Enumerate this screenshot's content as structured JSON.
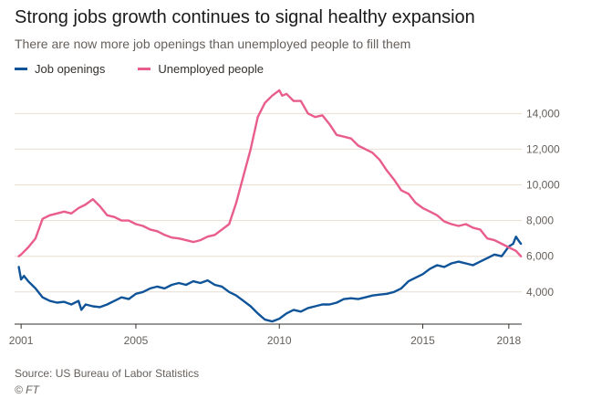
{
  "header": {
    "title": "Strong jobs growth continues to signal healthy expansion",
    "subtitle": "There are now more job openings than unemployed people to fill them"
  },
  "footer": {
    "source": "Source: US Bureau of Labor Statistics",
    "credit": "© FT"
  },
  "colors": {
    "job_openings": "#0f5499",
    "unemployed": "#e95d8c",
    "grid": "#e9decf",
    "axis": "#33302e"
  },
  "chart_data": {
    "type": "line",
    "title": "Strong jobs growth continues to signal healthy expansion",
    "subtitle": "There are now more job openings than unemployed people to fill them",
    "xlabel": "",
    "ylabel": "",
    "xlim": [
      2000.9,
      2018.45
    ],
    "ylim": [
      2200,
      15500
    ],
    "y_ticks": [
      4000,
      6000,
      8000,
      10000,
      12000,
      14000
    ],
    "y_tick_labels": [
      "4,000",
      "6,000",
      "8,000",
      "10,000",
      "12,000",
      "14,000"
    ],
    "x_ticks": [
      2001,
      2005,
      2010,
      2015,
      2018
    ],
    "x_tick_labels": [
      "2001",
      "2005",
      "2010",
      "2015",
      "2018"
    ],
    "grid": true,
    "y_axis_side": "right",
    "legend": "top-left",
    "series": [
      {
        "name": "Job openings",
        "color": "#0f5499",
        "points": [
          [
            2000.92,
            5400
          ],
          [
            2001.0,
            4700
          ],
          [
            2001.1,
            4900
          ],
          [
            2001.25,
            4600
          ],
          [
            2001.5,
            4200
          ],
          [
            2001.75,
            3700
          ],
          [
            2002.0,
            3500
          ],
          [
            2002.25,
            3400
          ],
          [
            2002.5,
            3450
          ],
          [
            2002.75,
            3300
          ],
          [
            2003.0,
            3500
          ],
          [
            2003.1,
            3000
          ],
          [
            2003.25,
            3300
          ],
          [
            2003.5,
            3200
          ],
          [
            2003.75,
            3150
          ],
          [
            2004.0,
            3300
          ],
          [
            2004.25,
            3500
          ],
          [
            2004.5,
            3700
          ],
          [
            2004.75,
            3600
          ],
          [
            2005.0,
            3900
          ],
          [
            2005.25,
            4000
          ],
          [
            2005.5,
            4200
          ],
          [
            2005.75,
            4300
          ],
          [
            2006.0,
            4200
          ],
          [
            2006.25,
            4400
          ],
          [
            2006.5,
            4500
          ],
          [
            2006.75,
            4400
          ],
          [
            2007.0,
            4600
          ],
          [
            2007.25,
            4500
          ],
          [
            2007.5,
            4650
          ],
          [
            2007.75,
            4400
          ],
          [
            2008.0,
            4300
          ],
          [
            2008.25,
            4000
          ],
          [
            2008.5,
            3800
          ],
          [
            2008.75,
            3500
          ],
          [
            2009.0,
            3200
          ],
          [
            2009.25,
            2800
          ],
          [
            2009.5,
            2450
          ],
          [
            2009.75,
            2350
          ],
          [
            2010.0,
            2500
          ],
          [
            2010.25,
            2800
          ],
          [
            2010.5,
            3000
          ],
          [
            2010.75,
            2900
          ],
          [
            2011.0,
            3100
          ],
          [
            2011.25,
            3200
          ],
          [
            2011.5,
            3300
          ],
          [
            2011.75,
            3300
          ],
          [
            2012.0,
            3400
          ],
          [
            2012.25,
            3600
          ],
          [
            2012.5,
            3650
          ],
          [
            2012.75,
            3600
          ],
          [
            2013.0,
            3700
          ],
          [
            2013.25,
            3800
          ],
          [
            2013.5,
            3850
          ],
          [
            2013.75,
            3900
          ],
          [
            2014.0,
            4000
          ],
          [
            2014.25,
            4200
          ],
          [
            2014.5,
            4600
          ],
          [
            2014.75,
            4800
          ],
          [
            2015.0,
            5000
          ],
          [
            2015.25,
            5300
          ],
          [
            2015.5,
            5500
          ],
          [
            2015.75,
            5400
          ],
          [
            2016.0,
            5600
          ],
          [
            2016.25,
            5700
          ],
          [
            2016.5,
            5600
          ],
          [
            2016.75,
            5500
          ],
          [
            2017.0,
            5700
          ],
          [
            2017.25,
            5900
          ],
          [
            2017.5,
            6100
          ],
          [
            2017.75,
            6000
          ],
          [
            2018.0,
            6550
          ],
          [
            2018.15,
            6700
          ],
          [
            2018.25,
            7100
          ],
          [
            2018.33,
            6900
          ],
          [
            2018.42,
            6700
          ]
        ]
      },
      {
        "name": "Unemployed people",
        "color": "#e95d8c",
        "points": [
          [
            2000.92,
            6000
          ],
          [
            2001.0,
            6100
          ],
          [
            2001.25,
            6500
          ],
          [
            2001.5,
            7000
          ],
          [
            2001.75,
            8100
          ],
          [
            2002.0,
            8300
          ],
          [
            2002.25,
            8400
          ],
          [
            2002.5,
            8500
          ],
          [
            2002.75,
            8400
          ],
          [
            2003.0,
            8700
          ],
          [
            2003.25,
            8900
          ],
          [
            2003.5,
            9200
          ],
          [
            2003.75,
            8800
          ],
          [
            2004.0,
            8300
          ],
          [
            2004.25,
            8200
          ],
          [
            2004.5,
            8000
          ],
          [
            2004.75,
            8000
          ],
          [
            2005.0,
            7800
          ],
          [
            2005.25,
            7700
          ],
          [
            2005.5,
            7500
          ],
          [
            2005.75,
            7400
          ],
          [
            2006.0,
            7200
          ],
          [
            2006.25,
            7050
          ],
          [
            2006.5,
            7000
          ],
          [
            2006.75,
            6900
          ],
          [
            2007.0,
            6800
          ],
          [
            2007.25,
            6900
          ],
          [
            2007.5,
            7100
          ],
          [
            2007.75,
            7200
          ],
          [
            2008.0,
            7500
          ],
          [
            2008.25,
            7800
          ],
          [
            2008.5,
            9000
          ],
          [
            2008.75,
            10500
          ],
          [
            2009.0,
            12000
          ],
          [
            2009.25,
            13800
          ],
          [
            2009.5,
            14600
          ],
          [
            2009.75,
            15000
          ],
          [
            2010.0,
            15300
          ],
          [
            2010.1,
            15000
          ],
          [
            2010.25,
            15100
          ],
          [
            2010.5,
            14700
          ],
          [
            2010.75,
            14700
          ],
          [
            2011.0,
            14000
          ],
          [
            2011.25,
            13800
          ],
          [
            2011.5,
            13900
          ],
          [
            2011.75,
            13400
          ],
          [
            2012.0,
            12800
          ],
          [
            2012.25,
            12700
          ],
          [
            2012.5,
            12600
          ],
          [
            2012.75,
            12200
          ],
          [
            2013.0,
            12000
          ],
          [
            2013.25,
            11800
          ],
          [
            2013.5,
            11400
          ],
          [
            2013.75,
            10800
          ],
          [
            2014.0,
            10300
          ],
          [
            2014.25,
            9700
          ],
          [
            2014.5,
            9500
          ],
          [
            2014.75,
            9000
          ],
          [
            2015.0,
            8700
          ],
          [
            2015.25,
            8500
          ],
          [
            2015.5,
            8300
          ],
          [
            2015.75,
            7950
          ],
          [
            2016.0,
            7800
          ],
          [
            2016.25,
            7700
          ],
          [
            2016.5,
            7800
          ],
          [
            2016.75,
            7600
          ],
          [
            2017.0,
            7500
          ],
          [
            2017.25,
            7000
          ],
          [
            2017.5,
            6900
          ],
          [
            2017.75,
            6700
          ],
          [
            2018.0,
            6500
          ],
          [
            2018.25,
            6300
          ],
          [
            2018.42,
            6000
          ]
        ]
      }
    ]
  }
}
